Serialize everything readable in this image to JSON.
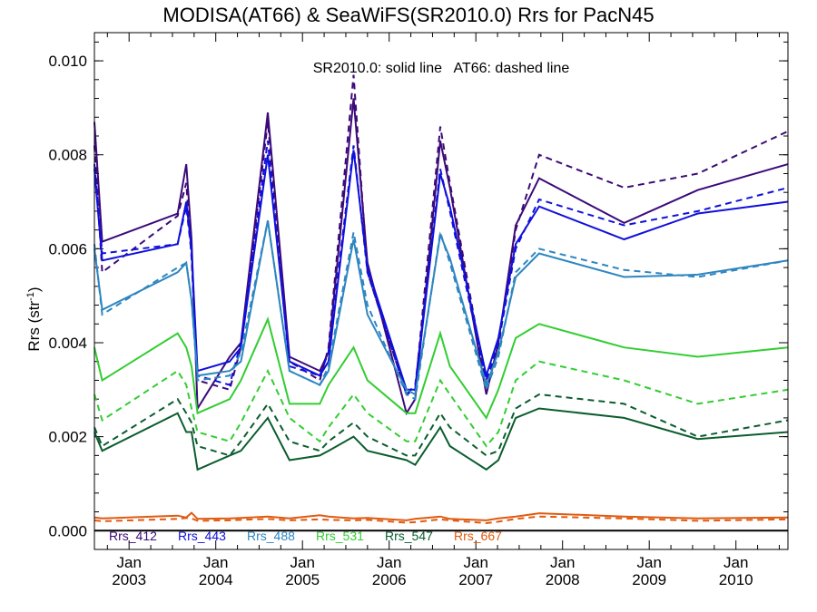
{
  "chart_data": {
    "type": "line",
    "title": "MODISA(AT66) & SeaWiFS(SR2010.0)  Rrs for PacN45",
    "annotation": "SR2010.0: solid line   AT66: dashed line",
    "ylabel": "Rrs (str",
    "ylabel_sup": "-1",
    "ylabel_close": ")",
    "xlabel": "",
    "x_unit": "decimal year",
    "xlim": [
      2002.6,
      2010.6
    ],
    "ylim": [
      -0.0004,
      0.0106
    ],
    "yticks": [
      "0.000",
      "0.002",
      "0.004",
      "0.006",
      "0.008",
      "0.010"
    ],
    "ytick_values": [
      0.0,
      0.002,
      0.004,
      0.006,
      0.008,
      0.01
    ],
    "xticks": [
      {
        "month": "Jan",
        "year": "2003",
        "value": 2003.0
      },
      {
        "month": "Jan",
        "year": "2004",
        "value": 2004.0
      },
      {
        "month": "Jan",
        "year": "2005",
        "value": 2005.0
      },
      {
        "month": "Jan",
        "year": "2006",
        "value": 2006.0
      },
      {
        "month": "Jan",
        "year": "2007",
        "value": 2007.0
      },
      {
        "month": "Jan",
        "year": "2008",
        "value": 2008.0
      },
      {
        "month": "Jan",
        "year": "2009",
        "value": 2009.0
      },
      {
        "month": "Jan",
        "year": "2010",
        "value": 2010.0
      }
    ],
    "zero_line": true,
    "grid": false,
    "legend_placement": "bottom",
    "series": [
      {
        "name": "Rrs_412",
        "color": "#3c0a78",
        "style": "solid",
        "x": [
          2002.6,
          2002.69,
          2003.56,
          2003.66,
          2003.72,
          2003.79,
          2004.16,
          2004.29,
          2004.6,
          2004.85,
          2005.2,
          2005.3,
          2005.59,
          2005.75,
          2006.2,
          2006.3,
          2006.59,
          2006.7,
          2007.12,
          2007.26,
          2007.46,
          2007.73,
          2008.71,
          2009.56,
          2010.6
        ],
        "y": [
          0.0087,
          0.00615,
          0.00675,
          0.0078,
          0.0062,
          0.0026,
          0.0037,
          0.004,
          0.0089,
          0.0037,
          0.0034,
          0.0038,
          0.0092,
          0.0057,
          0.0025,
          0.0028,
          0.0083,
          0.0073,
          0.0029,
          0.004,
          0.0065,
          0.0075,
          0.00655,
          0.00725,
          0.0078
        ]
      },
      {
        "name": "Rrs_412",
        "color": "#3c0a78",
        "style": "dashed",
        "x": [
          2002.6,
          2002.69,
          2003.56,
          2003.66,
          2003.72,
          2003.79,
          2004.16,
          2004.29,
          2004.6,
          2004.85,
          2005.2,
          2005.3,
          2005.59,
          2005.75,
          2006.2,
          2006.3,
          2006.59,
          2006.7,
          2007.12,
          2007.26,
          2007.46,
          2007.73,
          2008.71,
          2009.56,
          2010.6
        ],
        "y": [
          0.0082,
          0.0055,
          0.0067,
          0.0074,
          0.0058,
          0.0032,
          0.003,
          0.0039,
          0.0087,
          0.0036,
          0.0032,
          0.0039,
          0.0097,
          0.0055,
          0.0029,
          0.003,
          0.0086,
          0.0074,
          0.0031,
          0.0039,
          0.0064,
          0.008,
          0.0073,
          0.0076,
          0.0085
        ]
      },
      {
        "name": "Rrs_443",
        "color": "#1010dc",
        "style": "solid",
        "x": [
          2002.6,
          2002.69,
          2003.56,
          2003.66,
          2003.72,
          2003.79,
          2004.16,
          2004.29,
          2004.6,
          2004.85,
          2005.2,
          2005.3,
          2005.59,
          2005.75,
          2006.2,
          2006.3,
          2006.59,
          2006.7,
          2007.12,
          2007.26,
          2007.46,
          2007.73,
          2008.71,
          2009.56,
          2010.6
        ],
        "y": [
          0.0077,
          0.00575,
          0.0061,
          0.007,
          0.006,
          0.0034,
          0.0036,
          0.0039,
          0.008,
          0.0036,
          0.0033,
          0.0036,
          0.0081,
          0.0056,
          0.003,
          0.003,
          0.0076,
          0.0069,
          0.0033,
          0.0041,
          0.0061,
          0.0069,
          0.0062,
          0.00675,
          0.007
        ]
      },
      {
        "name": "Rrs_443",
        "color": "#1010dc",
        "style": "dashed",
        "x": [
          2002.6,
          2002.69,
          2003.56,
          2003.66,
          2003.72,
          2003.79,
          2004.16,
          2004.29,
          2004.6,
          2004.85,
          2005.2,
          2005.3,
          2005.59,
          2005.75,
          2006.2,
          2006.3,
          2006.59,
          2006.7,
          2007.12,
          2007.26,
          2007.46,
          2007.73,
          2008.71,
          2009.56,
          2010.6
        ],
        "y": [
          0.0078,
          0.0059,
          0.0061,
          0.0069,
          0.0059,
          0.0033,
          0.0031,
          0.004,
          0.0083,
          0.0035,
          0.0033,
          0.0038,
          0.0082,
          0.0055,
          0.0029,
          0.0031,
          0.0077,
          0.0068,
          0.0032,
          0.004,
          0.006,
          0.00705,
          0.0065,
          0.0068,
          0.0073
        ]
      },
      {
        "name": "Rrs_488",
        "color": "#2e86c1",
        "style": "solid",
        "x": [
          2002.6,
          2002.69,
          2003.56,
          2003.66,
          2003.72,
          2003.79,
          2004.16,
          2004.29,
          2004.6,
          2004.85,
          2005.2,
          2005.3,
          2005.59,
          2005.75,
          2006.2,
          2006.3,
          2006.59,
          2006.7,
          2007.12,
          2007.26,
          2007.46,
          2007.73,
          2008.71,
          2009.56,
          2010.6
        ],
        "y": [
          0.006,
          0.0047,
          0.0055,
          0.0057,
          0.0049,
          0.0033,
          0.0034,
          0.0036,
          0.0066,
          0.0034,
          0.0031,
          0.0034,
          0.0062,
          0.0046,
          0.003,
          0.0029,
          0.0063,
          0.0058,
          0.0031,
          0.0038,
          0.0054,
          0.0059,
          0.0054,
          0.00545,
          0.00575
        ]
      },
      {
        "name": "Rrs_488",
        "color": "#2e86c1",
        "style": "dashed",
        "x": [
          2002.6,
          2002.69,
          2003.56,
          2003.66,
          2003.72,
          2003.79,
          2004.16,
          2004.29,
          2004.6,
          2004.85,
          2005.2,
          2005.3,
          2005.59,
          2005.75,
          2006.2,
          2006.3,
          2006.59,
          2006.7,
          2007.12,
          2007.26,
          2007.46,
          2007.73,
          2008.71,
          2009.56,
          2010.6
        ],
        "y": [
          0.0061,
          0.0046,
          0.0056,
          0.0057,
          0.0049,
          0.0032,
          0.0033,
          0.0038,
          0.0066,
          0.0034,
          0.0031,
          0.0035,
          0.00635,
          0.0048,
          0.0029,
          0.0028,
          0.00635,
          0.0057,
          0.003,
          0.0037,
          0.0055,
          0.006,
          0.00555,
          0.0054,
          0.00575
        ]
      },
      {
        "name": "Rrs_531",
        "color": "#32cd32",
        "style": "solid",
        "x": [
          2002.6,
          2002.69,
          2003.56,
          2003.66,
          2003.72,
          2003.79,
          2004.16,
          2004.29,
          2004.6,
          2004.85,
          2005.2,
          2005.3,
          2005.59,
          2005.75,
          2006.2,
          2006.3,
          2006.59,
          2006.7,
          2007.12,
          2007.26,
          2007.46,
          2007.73,
          2008.71,
          2009.56,
          2010.6
        ],
        "y": [
          0.0039,
          0.0032,
          0.0042,
          0.0039,
          0.0035,
          0.0025,
          0.0028,
          0.0032,
          0.0045,
          0.0027,
          0.0027,
          0.0031,
          0.0039,
          0.0032,
          0.0025,
          0.0025,
          0.0042,
          0.0035,
          0.0024,
          0.003,
          0.0041,
          0.0044,
          0.0039,
          0.0037,
          0.0039
        ]
      },
      {
        "name": "Rrs_531",
        "color": "#32cd32",
        "style": "dashed",
        "x": [
          2002.6,
          2002.69,
          2003.56,
          2003.66,
          2003.72,
          2003.79,
          2004.16,
          2004.29,
          2004.6,
          2004.85,
          2005.2,
          2005.3,
          2005.59,
          2005.75,
          2006.2,
          2006.3,
          2006.59,
          2006.7,
          2007.12,
          2007.26,
          2007.46,
          2007.73,
          2008.71,
          2009.56,
          2010.6
        ],
        "y": [
          0.0029,
          0.00235,
          0.0034,
          0.0031,
          0.0026,
          0.0021,
          0.0019,
          0.0023,
          0.0034,
          0.0024,
          0.0019,
          0.0022,
          0.0029,
          0.0025,
          0.0019,
          0.0019,
          0.0032,
          0.0029,
          0.0018,
          0.0021,
          0.0032,
          0.0036,
          0.0032,
          0.0027,
          0.003
        ]
      },
      {
        "name": "Rrs_547",
        "color": "#0b5d2e",
        "style": "solid",
        "x": [
          2002.6,
          2002.69,
          2003.56,
          2003.66,
          2003.72,
          2003.79,
          2004.16,
          2004.29,
          2004.6,
          2004.85,
          2005.2,
          2005.3,
          2005.59,
          2005.75,
          2006.2,
          2006.3,
          2006.59,
          2006.7,
          2007.12,
          2007.26,
          2007.46,
          2007.73,
          2008.71,
          2009.56,
          2010.6
        ],
        "y": [
          0.0021,
          0.0017,
          0.0025,
          0.0021,
          0.0021,
          0.0013,
          0.0016,
          0.0017,
          0.0024,
          0.0015,
          0.0016,
          0.0017,
          0.002,
          0.0017,
          0.0015,
          0.0014,
          0.0022,
          0.0018,
          0.0013,
          0.0015,
          0.0024,
          0.0026,
          0.0024,
          0.00195,
          0.0021
        ]
      },
      {
        "name": "Rrs_547",
        "color": "#0b5d2e",
        "style": "dashed",
        "x": [
          2002.6,
          2002.69,
          2003.56,
          2003.66,
          2003.72,
          2003.79,
          2004.16,
          2004.29,
          2004.6,
          2004.85,
          2005.2,
          2005.3,
          2005.59,
          2005.75,
          2006.2,
          2006.3,
          2006.59,
          2006.7,
          2007.12,
          2007.26,
          2007.46,
          2007.73,
          2008.71,
          2009.56,
          2010.6
        ],
        "y": [
          0.0022,
          0.0018,
          0.0028,
          0.0025,
          0.0023,
          0.0018,
          0.0016,
          0.0019,
          0.0027,
          0.0019,
          0.0017,
          0.0019,
          0.0023,
          0.002,
          0.0016,
          0.0016,
          0.0025,
          0.0022,
          0.0016,
          0.0017,
          0.0026,
          0.0029,
          0.0027,
          0.002,
          0.00235
        ]
      },
      {
        "name": "Rrs_667",
        "color": "#e05a10",
        "style": "solid",
        "x": [
          2002.6,
          2002.69,
          2003.56,
          2003.66,
          2003.72,
          2003.79,
          2004.16,
          2004.29,
          2004.6,
          2004.85,
          2005.2,
          2005.3,
          2005.59,
          2005.75,
          2006.2,
          2006.3,
          2006.59,
          2006.7,
          2007.12,
          2007.26,
          2007.46,
          2007.73,
          2008.71,
          2009.56,
          2010.6
        ],
        "y": [
          0.00028,
          0.00026,
          0.00032,
          0.00028,
          0.00038,
          0.00025,
          0.00026,
          0.00027,
          0.0003,
          0.00026,
          0.00033,
          0.0003,
          0.00026,
          0.00027,
          0.00022,
          0.00025,
          0.0003,
          0.00025,
          0.00022,
          0.00026,
          0.0003,
          0.00037,
          0.0003,
          0.00026,
          0.00028
        ]
      },
      {
        "name": "Rrs_667",
        "color": "#e05a10",
        "style": "dashed",
        "x": [
          2002.6,
          2002.69,
          2003.56,
          2003.66,
          2003.72,
          2003.79,
          2004.16,
          2004.29,
          2004.6,
          2004.85,
          2005.2,
          2005.3,
          2005.59,
          2005.75,
          2006.2,
          2006.3,
          2006.59,
          2006.7,
          2007.12,
          2007.26,
          2007.46,
          2007.73,
          2008.71,
          2009.56,
          2010.6
        ],
        "y": [
          0.00022,
          0.0002,
          0.00025,
          0.00027,
          0.00026,
          0.00021,
          0.00022,
          0.00023,
          0.00025,
          0.00022,
          0.00024,
          0.00023,
          0.00022,
          0.00023,
          0.00017,
          0.00018,
          0.00024,
          0.00022,
          0.00016,
          0.00019,
          0.00025,
          0.0003,
          0.00026,
          0.00021,
          0.00024
        ]
      }
    ],
    "legend": [
      {
        "label": "Rrs_412",
        "color": "#3c0a78"
      },
      {
        "label": "Rrs_443",
        "color": "#1010dc"
      },
      {
        "label": "Rrs_488",
        "color": "#2e86c1"
      },
      {
        "label": "Rrs_531",
        "color": "#32cd32"
      },
      {
        "label": "Rrs_547",
        "color": "#0b5d2e"
      },
      {
        "label": "Rrs_667",
        "color": "#e05a10"
      }
    ]
  }
}
